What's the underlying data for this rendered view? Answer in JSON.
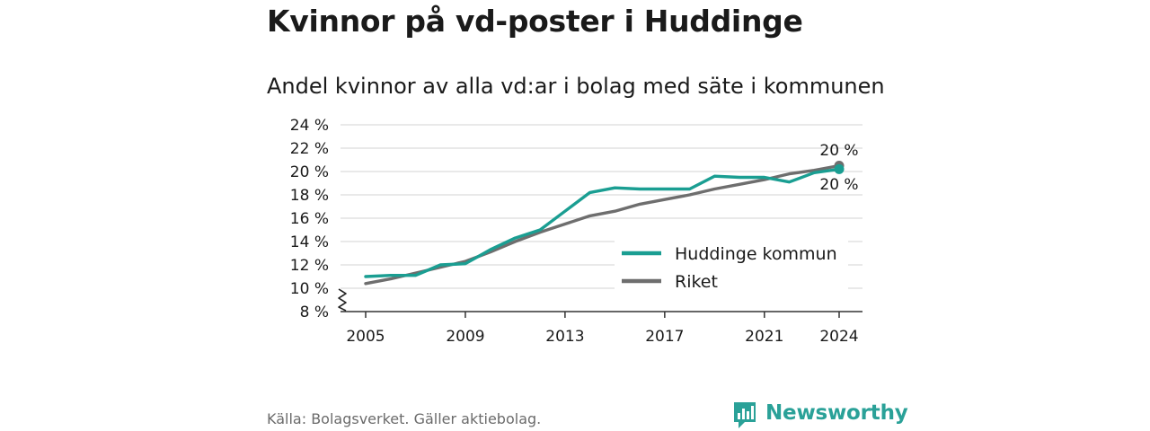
{
  "title": "Kvinnor på vd-poster i Huddinge",
  "subtitle": "Andel kvinnor av alla vd:ar i bolag med säte i kommunen",
  "source": "Källa: Bolagsverket. Gäller aktiebolag.",
  "logo": {
    "text": "Newsworthy",
    "icon": "bar-chart-speech-bubble-icon"
  },
  "colors": {
    "huddinge": "#1a9e92",
    "riket": "#6e6e6e",
    "grid": "#dcdcdc",
    "axis": "#333333",
    "brand": "#2aa198"
  },
  "chart_data": {
    "type": "line",
    "x": [
      2005,
      2006,
      2007,
      2008,
      2009,
      2010,
      2011,
      2012,
      2013,
      2014,
      2015,
      2016,
      2017,
      2018,
      2019,
      2020,
      2021,
      2022,
      2023,
      2024
    ],
    "series": [
      {
        "name": "Huddinge kommun",
        "values": [
          11.0,
          11.1,
          11.1,
          12.0,
          12.1,
          13.3,
          14.3,
          15.0,
          16.6,
          18.2,
          18.6,
          18.5,
          18.5,
          18.5,
          19.6,
          19.5,
          19.5,
          19.1,
          19.9,
          20.2
        ],
        "end_label": "20 %"
      },
      {
        "name": "Riket",
        "values": [
          10.4,
          10.8,
          11.3,
          11.8,
          12.3,
          13.1,
          14.0,
          14.8,
          15.5,
          16.2,
          16.6,
          17.2,
          17.6,
          18.0,
          18.5,
          18.9,
          19.3,
          19.8,
          20.1,
          20.5
        ],
        "end_label": "20 %"
      }
    ],
    "x_ticks": [
      "2005",
      "2009",
      "2013",
      "2017",
      "2021",
      "2024"
    ],
    "y_ticks": [
      "8 %",
      "10 %",
      "12 %",
      "14 %",
      "16 %",
      "18 %",
      "20 %",
      "22 %",
      "24 %"
    ],
    "ylim": [
      8,
      24
    ],
    "xlim": [
      2005,
      2024
    ],
    "axis_break": true,
    "grid": true,
    "legend_position": "bottom-right"
  }
}
